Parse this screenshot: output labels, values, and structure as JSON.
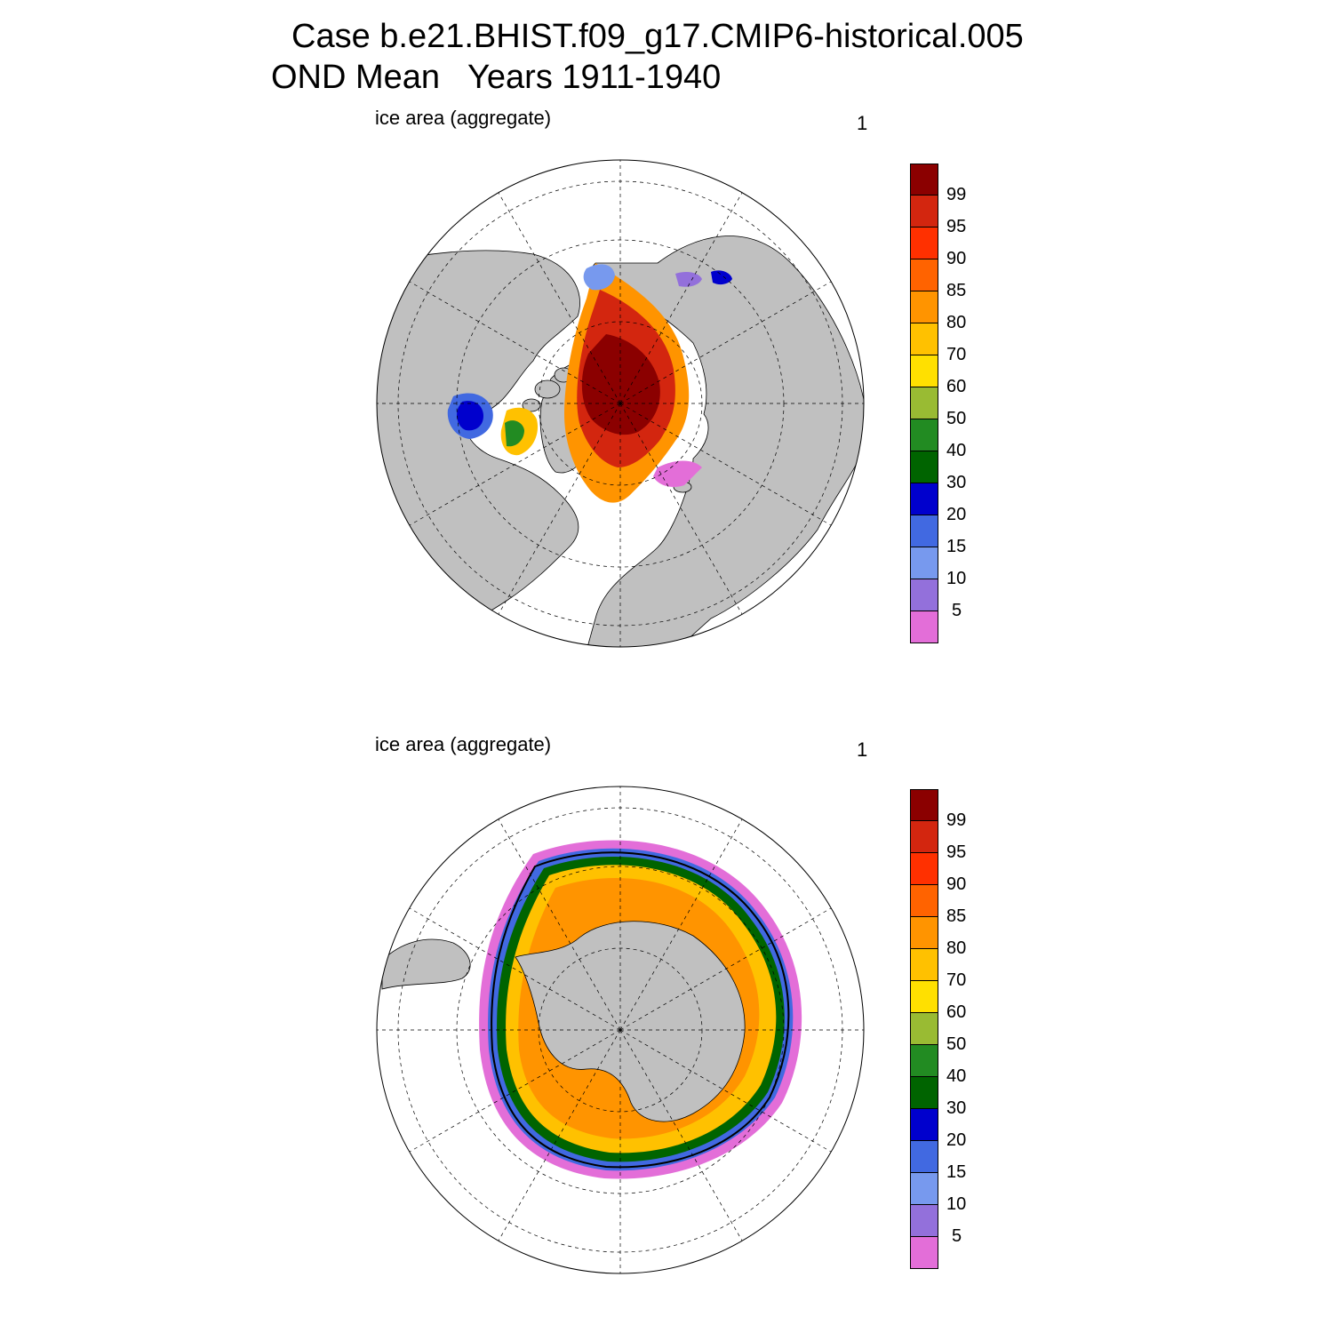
{
  "title": {
    "line1": "Case b.e21.BHIST.f09_g17.CMIP6-historical.005",
    "line2": "OND Mean   Years 1911-1940"
  },
  "panels": [
    {
      "id": "north",
      "label": "ice area  (aggregate)",
      "number": "1",
      "hemisphere": "Northern Hemisphere"
    },
    {
      "id": "south",
      "label": "ice area  (aggregate)",
      "number": "1",
      "hemisphere": "Southern Hemisphere"
    }
  ],
  "colorbar": {
    "labels": [
      "99",
      "95",
      "90",
      "85",
      "80",
      "70",
      "60",
      "50",
      "40",
      "30",
      "20",
      "15",
      "10",
      "5"
    ],
    "colors": [
      "#8b0000",
      "#d3260f",
      "#ff3000",
      "#ff6300",
      "#ff9400",
      "#ffc100",
      "#ffe000",
      "#99bb33",
      "#228b22",
      "#006400",
      "#0000cd",
      "#4169e1",
      "#7799ee",
      "#9370db",
      "#e36ed8"
    ]
  },
  "colors": {
    "land": "#c0c0c0",
    "ocean": "#ffffff",
    "grid": "#000000",
    "contour": "#000000"
  }
}
